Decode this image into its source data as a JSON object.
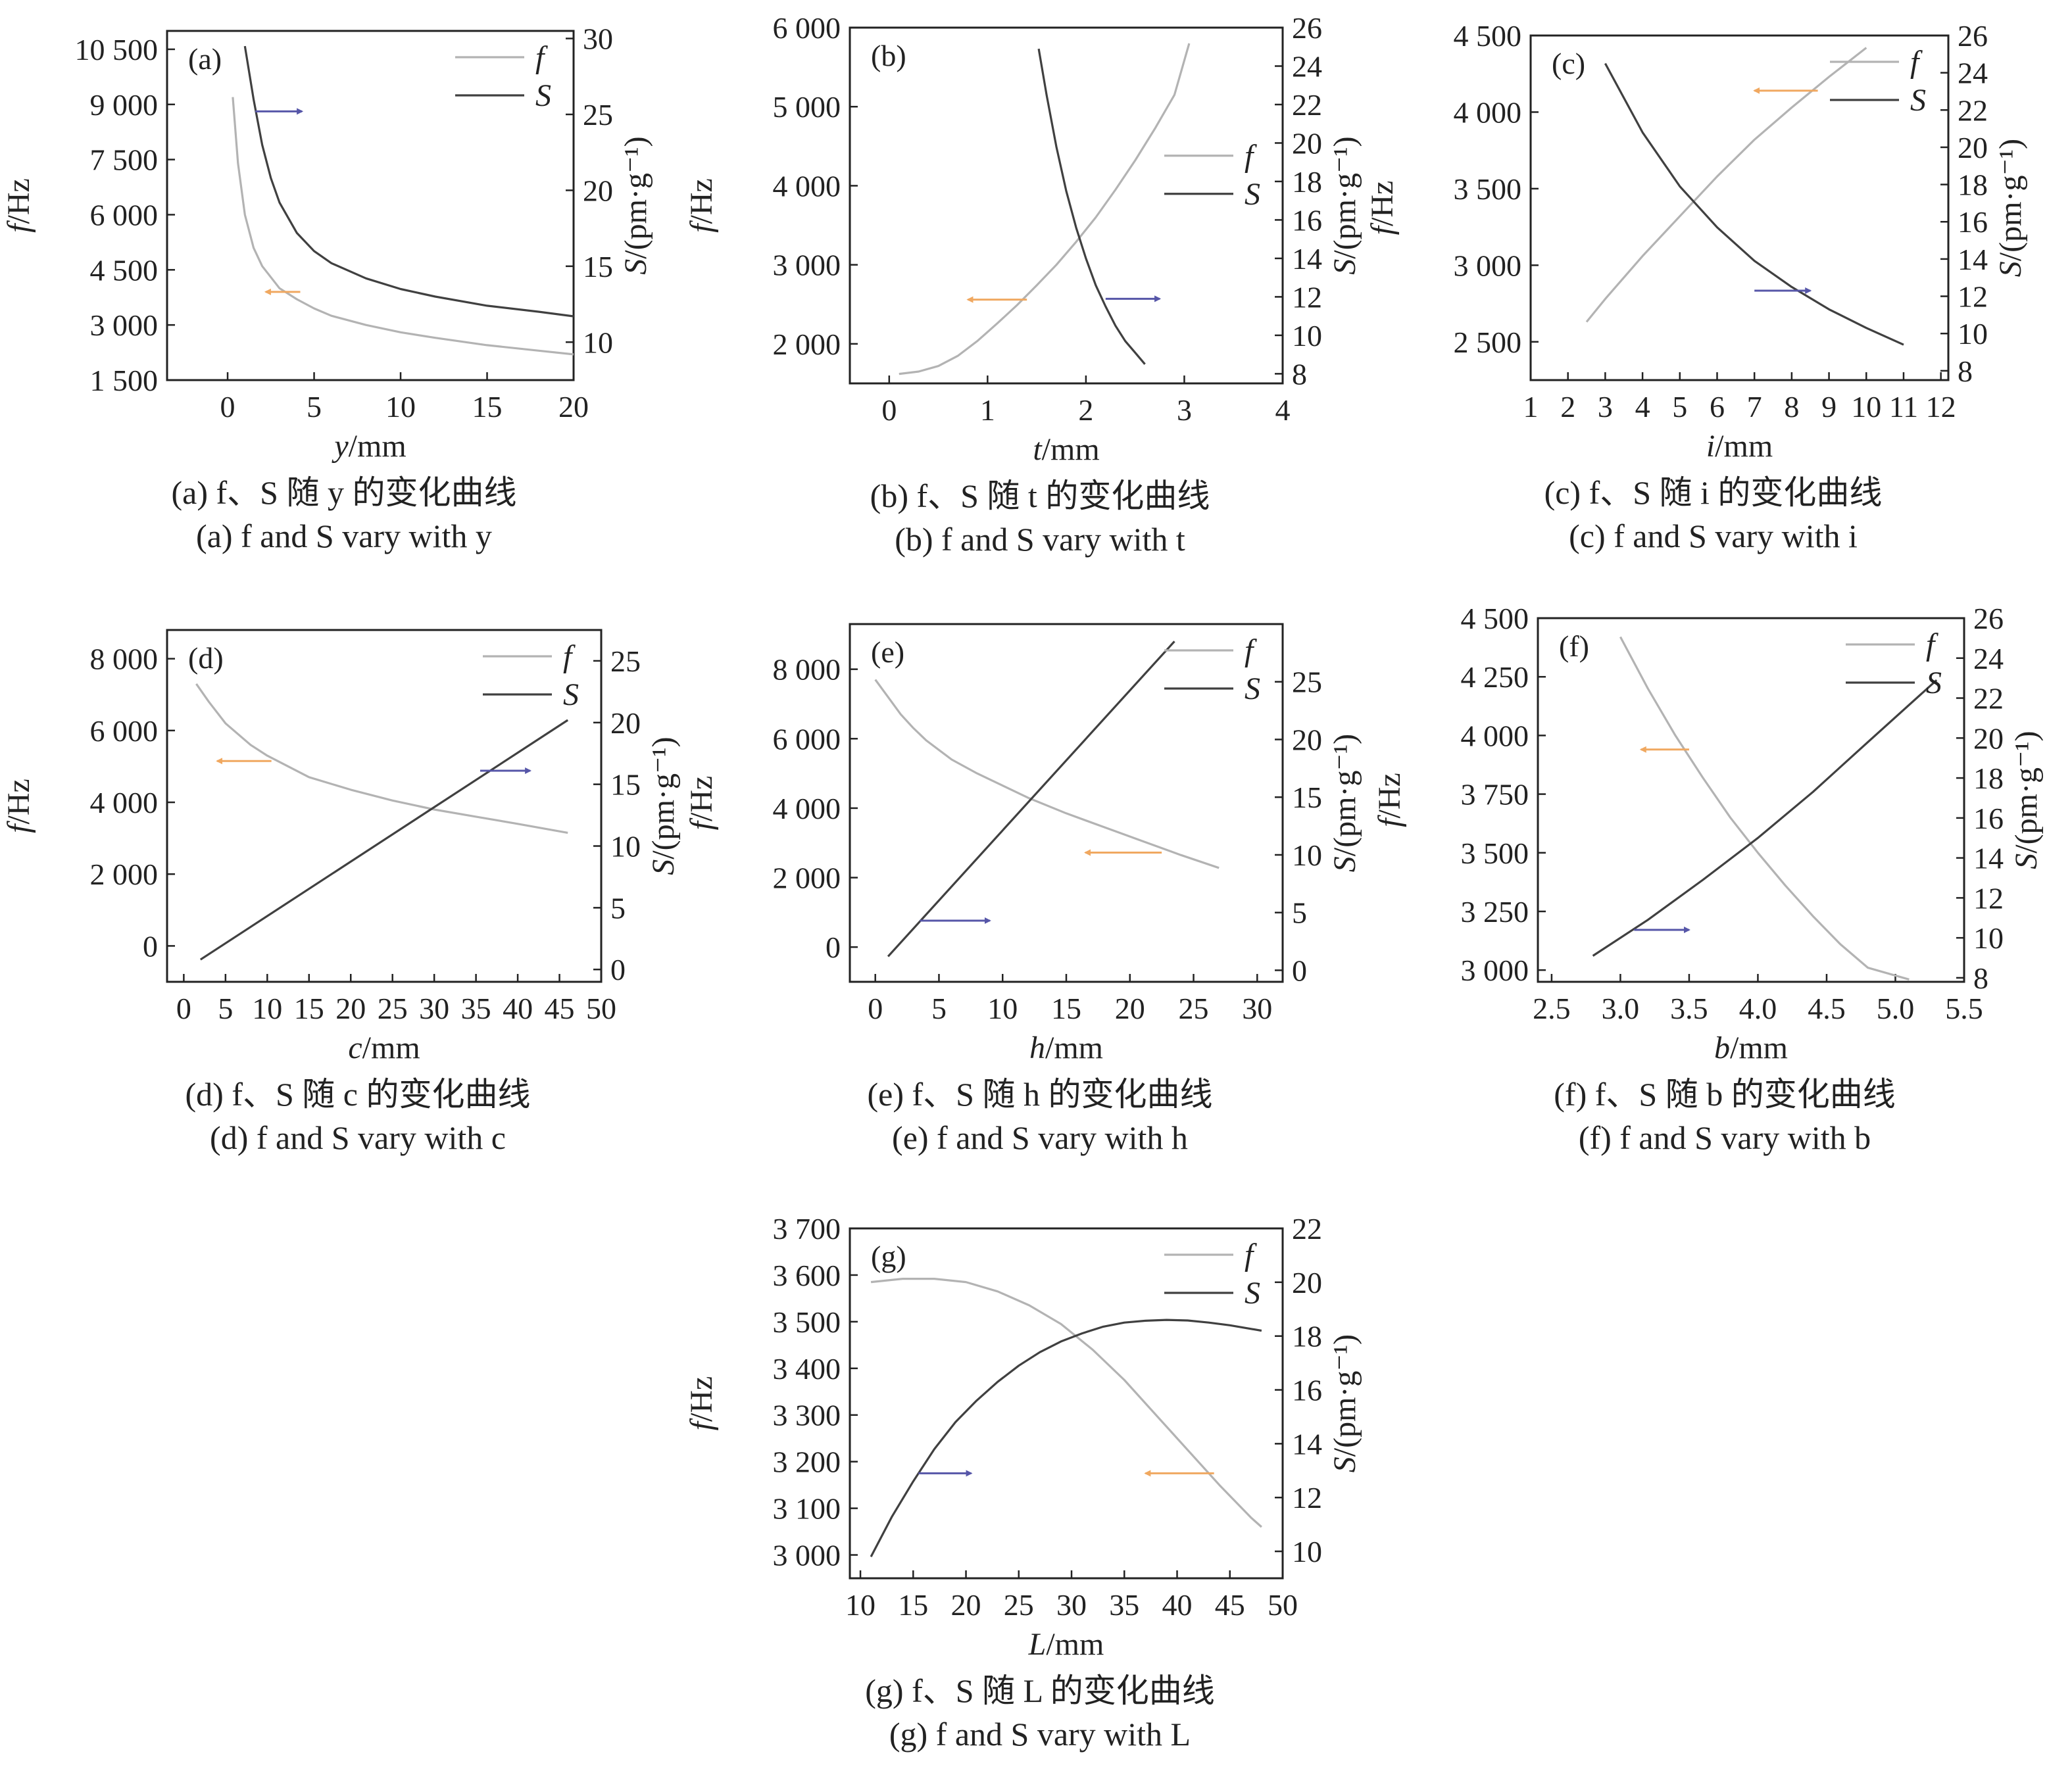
{
  "colors": {
    "f_line": "#b3b3b3",
    "s_line": "#404040",
    "f_arrow": "#f0a860",
    "s_arrow": "#5656a8",
    "axis": "#222222"
  },
  "chart_data": [
    {
      "type": "line",
      "label": "(a)",
      "caption_cn": "(a) f、S 随 y 的变化曲线",
      "caption_en": "(a) f and S vary with y",
      "xlabel": "y/mm",
      "ylabel": "f/Hz",
      "y2label": "S/(pm·g⁻¹)",
      "xlim": [
        -3.5,
        20
      ],
      "ylim": [
        1500,
        11000
      ],
      "y2lim": [
        7.5,
        30.5
      ],
      "xticks": [
        0,
        5,
        10,
        15,
        20
      ],
      "xtick_labels": [
        "0",
        "5",
        "10",
        "15",
        "20"
      ],
      "yticks": [
        1500,
        3000,
        4500,
        6000,
        7500,
        9000,
        10500
      ],
      "ytick_labels": [
        "1 500",
        "3 000",
        "4 500",
        "6 000",
        "7 500",
        "9 000",
        "10 500"
      ],
      "y2ticks": [
        10,
        15,
        20,
        25,
        30
      ],
      "y2tick_labels": [
        "10",
        "15",
        "20",
        "25",
        "30"
      ],
      "legend": [
        "f",
        "S"
      ],
      "legend_loc": "top-right",
      "series": [
        {
          "name": "f",
          "axis": "left",
          "x": [
            0.3,
            0.6,
            1,
            1.5,
            2,
            3,
            4,
            5,
            6,
            8,
            10,
            12,
            15,
            18,
            20
          ],
          "y": [
            9200,
            7400,
            6000,
            5100,
            4600,
            4000,
            3700,
            3450,
            3250,
            3000,
            2800,
            2650,
            2450,
            2300,
            2200
          ]
        },
        {
          "name": "S",
          "axis": "right",
          "x": [
            1,
            1.5,
            2,
            2.5,
            3,
            4,
            5,
            6,
            8,
            10,
            12,
            15,
            18,
            20
          ],
          "y": [
            29.5,
            26,
            23,
            20.8,
            19.2,
            17.2,
            16,
            15.2,
            14.2,
            13.5,
            13,
            12.4,
            12,
            11.7
          ]
        }
      ],
      "arrows": [
        {
          "series": "f",
          "x1": 4.2,
          "x2": 2.2,
          "y": 3900,
          "axis": "left"
        },
        {
          "series": "S",
          "x1": 1.6,
          "x2": 4.3,
          "y": 25.2,
          "axis": "right"
        }
      ]
    },
    {
      "type": "line",
      "label": "(b)",
      "caption_cn": "(b) f、S 随 t 的变化曲线",
      "caption_en": "(b) f and S vary with t",
      "xlabel": "t/mm",
      "ylabel": "f/Hz",
      "y2label": "S/(pm·g⁻¹)",
      "xlim": [
        -0.4,
        4
      ],
      "ylim": [
        1500,
        6000
      ],
      "y2lim": [
        7.5,
        26
      ],
      "xticks": [
        0,
        1,
        2,
        3,
        4
      ],
      "xtick_labels": [
        "0",
        "1",
        "2",
        "3",
        "4"
      ],
      "yticks": [
        2000,
        3000,
        4000,
        5000,
        6000
      ],
      "ytick_labels": [
        "2 000",
        "3 000",
        "4 000",
        "5 000",
        "6 000"
      ],
      "y2ticks": [
        8,
        10,
        12,
        14,
        16,
        18,
        20,
        22,
        24,
        26
      ],
      "y2tick_labels": [
        "8",
        "10",
        "12",
        "14",
        "16",
        "18",
        "20",
        "22",
        "24",
        "26"
      ],
      "legend": [
        "f",
        "S"
      ],
      "legend_loc": "center-right",
      "series": [
        {
          "name": "f",
          "axis": "left",
          "x": [
            0.1,
            0.3,
            0.5,
            0.7,
            0.9,
            1.1,
            1.3,
            1.5,
            1.7,
            1.9,
            2.1,
            2.3,
            2.5,
            2.7,
            2.9,
            3.05
          ],
          "y": [
            1620,
            1650,
            1720,
            1850,
            2040,
            2260,
            2490,
            2740,
            3000,
            3290,
            3600,
            3950,
            4320,
            4720,
            5150,
            5800
          ]
        },
        {
          "name": "S",
          "axis": "right",
          "x": [
            1.52,
            1.6,
            1.7,
            1.8,
            1.9,
            2.0,
            2.1,
            2.2,
            2.3,
            2.4,
            2.5,
            2.6
          ],
          "y": [
            24.9,
            22.5,
            19.8,
            17.5,
            15.6,
            14.0,
            12.6,
            11.5,
            10.5,
            9.7,
            9.1,
            8.5
          ]
        }
      ],
      "arrows": [
        {
          "series": "f",
          "x1": 1.4,
          "x2": 0.8,
          "y": 2560,
          "axis": "left"
        },
        {
          "series": "S",
          "x1": 2.2,
          "x2": 2.75,
          "y": 11.9,
          "axis": "right"
        }
      ]
    },
    {
      "type": "line",
      "label": "(c)",
      "caption_cn": "(c) f、S 随 i 的变化曲线",
      "caption_en": "(c) f and S vary with i",
      "xlabel": "i/mm",
      "ylabel": "f/Hz",
      "y2label": "S/(pm·g⁻¹)",
      "xlim": [
        1,
        12.2
      ],
      "ylim": [
        2250,
        4500
      ],
      "y2lim": [
        7.5,
        26
      ],
      "xticks": [
        1,
        2,
        3,
        4,
        5,
        6,
        7,
        8,
        9,
        10,
        11,
        12
      ],
      "xtick_labels": [
        "1",
        "2",
        "3",
        "4",
        "5",
        "6",
        "7",
        "8",
        "9",
        "10",
        "11",
        "12"
      ],
      "yticks": [
        2500,
        3000,
        3500,
        4000,
        4500
      ],
      "ytick_labels": [
        "2 500",
        "3 000",
        "3 500",
        "4 000",
        "4 500"
      ],
      "y2ticks": [
        8,
        10,
        12,
        14,
        16,
        18,
        20,
        22,
        24,
        26
      ],
      "y2tick_labels": [
        "8",
        "10",
        "12",
        "14",
        "16",
        "18",
        "20",
        "22",
        "24",
        "26"
      ],
      "legend": [
        "f",
        "S"
      ],
      "legend_loc": "top-right",
      "series": [
        {
          "name": "f",
          "axis": "left",
          "x": [
            2.5,
            3,
            4,
            5,
            6,
            7,
            8,
            9,
            10
          ],
          "y": [
            2630,
            2780,
            3060,
            3320,
            3580,
            3820,
            4030,
            4230,
            4420
          ]
        },
        {
          "name": "S",
          "axis": "right",
          "x": [
            3,
            4,
            5,
            6,
            7,
            8,
            9,
            10,
            11
          ],
          "y": [
            24.5,
            20.8,
            17.9,
            15.7,
            13.9,
            12.5,
            11.3,
            10.3,
            9.4
          ]
        }
      ],
      "arrows": [
        {
          "series": "f",
          "x1": 8.7,
          "x2": 7.0,
          "y": 4140,
          "axis": "left"
        },
        {
          "series": "S",
          "x1": 7.0,
          "x2": 8.5,
          "y": 12.3,
          "axis": "right"
        }
      ]
    },
    {
      "type": "line",
      "label": "(d)",
      "caption_cn": "(d) f、S 随 c 的变化曲线",
      "caption_en": "(d) f and S vary with c",
      "xlabel": "c/mm",
      "ylabel": "f/Hz",
      "y2label": "S/(pm·g⁻¹)",
      "xlim": [
        -2,
        50
      ],
      "ylim": [
        -1000,
        8800
      ],
      "y2lim": [
        -1,
        27.5
      ],
      "xticks": [
        0,
        5,
        10,
        15,
        20,
        25,
        30,
        35,
        40,
        45,
        50
      ],
      "xtick_labels": [
        "0",
        "5",
        "10",
        "15",
        "20",
        "25",
        "30",
        "35",
        "40",
        "45",
        "50"
      ],
      "yticks": [
        0,
        2000,
        4000,
        6000,
        8000
      ],
      "ytick_labels": [
        "0",
        "2 000",
        "4 000",
        "6 000",
        "8 000"
      ],
      "y2ticks": [
        0,
        5,
        10,
        15,
        20,
        25
      ],
      "y2tick_labels": [
        "0",
        "5",
        "10",
        "15",
        "20",
        "25"
      ],
      "legend": [
        "f",
        "S"
      ],
      "legend_loc": "top-right",
      "series": [
        {
          "name": "f",
          "axis": "left",
          "x": [
            1.5,
            3,
            5,
            8,
            10,
            15,
            20,
            25,
            30,
            35,
            40,
            46
          ],
          "y": [
            7300,
            6800,
            6200,
            5600,
            5300,
            4700,
            4350,
            4050,
            3800,
            3600,
            3400,
            3150
          ]
        },
        {
          "name": "S",
          "axis": "right",
          "x": [
            2,
            46
          ],
          "y": [
            0.8,
            20.2
          ]
        }
      ],
      "arrows": [
        {
          "series": "f",
          "x1": 10.5,
          "x2": 4.0,
          "y": 5150,
          "axis": "left"
        },
        {
          "series": "S",
          "x1": 35.5,
          "x2": 41.5,
          "y": 16.1,
          "axis": "right"
        }
      ]
    },
    {
      "type": "line",
      "label": "(e)",
      "caption_cn": "(e) f、S 随 h 的变化曲线",
      "caption_en": "(e) f and S vary with h",
      "xlabel": "h/mm",
      "ylabel": "f/Hz",
      "y2label": "S/(pm·g⁻¹)",
      "xlim": [
        -2,
        32
      ],
      "ylim": [
        -1000,
        9300
      ],
      "y2lim": [
        -1,
        30
      ],
      "xticks": [
        0,
        5,
        10,
        15,
        20,
        25,
        30
      ],
      "xtick_labels": [
        "0",
        "5",
        "10",
        "15",
        "20",
        "25",
        "30"
      ],
      "yticks": [
        0,
        2000,
        4000,
        6000,
        8000
      ],
      "ytick_labels": [
        "0",
        "2 000",
        "4 000",
        "6 000",
        "8 000"
      ],
      "y2ticks": [
        0,
        5,
        10,
        15,
        20,
        25
      ],
      "y2tick_labels": [
        "0",
        "5",
        "10",
        "15",
        "20",
        "25"
      ],
      "legend": [
        "f",
        "S"
      ],
      "legend_loc": "top-right",
      "series": [
        {
          "name": "f",
          "axis": "left",
          "x": [
            0,
            1,
            2,
            3,
            4,
            6,
            8,
            10,
            12,
            15,
            18,
            21,
            24,
            27
          ],
          "y": [
            7700,
            7200,
            6700,
            6300,
            5950,
            5400,
            5000,
            4650,
            4300,
            3850,
            3450,
            3050,
            2650,
            2280
          ]
        },
        {
          "name": "S",
          "axis": "right",
          "x": [
            1,
            23.5
          ],
          "y": [
            1.2,
            28.5
          ]
        }
      ],
      "arrows": [
        {
          "series": "f",
          "x1": 22.5,
          "x2": 16.5,
          "y": 2720,
          "axis": "left"
        },
        {
          "series": "S",
          "x1": 3.5,
          "x2": 9.0,
          "y": 4.3,
          "axis": "right"
        }
      ]
    },
    {
      "type": "line",
      "label": "(f)",
      "caption_cn": "(f) f、S 随 b 的变化曲线",
      "caption_en": "(f) f and S vary with b",
      "xlabel": "b/mm",
      "ylabel": "f/Hz",
      "y2label": "S/(pm·g⁻¹)",
      "xlim": [
        2.4,
        5.5
      ],
      "ylim": [
        2950,
        4500
      ],
      "y2lim": [
        7.8,
        26
      ],
      "xticks": [
        2.5,
        3.0,
        3.5,
        4.0,
        4.5,
        5.0,
        5.5
      ],
      "xtick_labels": [
        "2.5",
        "3.0",
        "3.5",
        "4.0",
        "4.5",
        "5.0",
        "5.5"
      ],
      "yticks": [
        3000,
        3250,
        3500,
        3750,
        4000,
        4250,
        4500
      ],
      "ytick_labels": [
        "3 000",
        "3 250",
        "3 500",
        "3 750",
        "4 000",
        "4 250",
        "4 500"
      ],
      "y2ticks": [
        8,
        10,
        12,
        14,
        16,
        18,
        20,
        22,
        24,
        26
      ],
      "y2tick_labels": [
        "8",
        "10",
        "12",
        "14",
        "16",
        "18",
        "20",
        "22",
        "24",
        "26"
      ],
      "legend": [
        "f",
        "S"
      ],
      "legend_loc": "top-right",
      "series": [
        {
          "name": "f",
          "axis": "left",
          "x": [
            3.0,
            3.2,
            3.4,
            3.6,
            3.8,
            4.0,
            4.2,
            4.4,
            4.6,
            4.8,
            5.1
          ],
          "y": [
            4420,
            4200,
            4000,
            3820,
            3650,
            3500,
            3360,
            3230,
            3110,
            3010,
            2960
          ]
        },
        {
          "name": "S",
          "axis": "right",
          "x": [
            2.8,
            3.2,
            3.6,
            4.0,
            4.4,
            4.8,
            5.3
          ],
          "y": [
            9.1,
            10.9,
            12.9,
            15.0,
            17.3,
            19.8,
            22.9
          ]
        }
      ],
      "arrows": [
        {
          "series": "f",
          "x1": 3.5,
          "x2": 3.15,
          "y": 3940,
          "axis": "left"
        },
        {
          "series": "S",
          "x1": 3.1,
          "x2": 3.5,
          "y": 10.4,
          "axis": "right"
        }
      ]
    },
    {
      "type": "line",
      "label": "(g)",
      "caption_cn": "(g) f、S 随 L 的变化曲线",
      "caption_en": "(g) f and S vary with L",
      "xlabel": "L/mm",
      "ylabel": "f/Hz",
      "y2label": "S/(pm·g⁻¹)",
      "xlim": [
        9,
        50
      ],
      "ylim": [
        2950,
        3700
      ],
      "y2lim": [
        9,
        22
      ],
      "xticks": [
        10,
        15,
        20,
        25,
        30,
        35,
        40,
        45,
        50
      ],
      "xtick_labels": [
        "10",
        "15",
        "20",
        "25",
        "30",
        "35",
        "40",
        "45",
        "50"
      ],
      "yticks": [
        3000,
        3100,
        3200,
        3300,
        3400,
        3500,
        3600,
        3700
      ],
      "ytick_labels": [
        "3 000",
        "3 100",
        "3 200",
        "3 300",
        "3 400",
        "3 500",
        "3 600",
        "3 700"
      ],
      "y2ticks": [
        10,
        12,
        14,
        16,
        18,
        20,
        22
      ],
      "y2tick_labels": [
        "10",
        "12",
        "14",
        "16",
        "18",
        "20",
        "22"
      ],
      "legend": [
        "f",
        "S"
      ],
      "legend_loc": "top-right",
      "series": [
        {
          "name": "f",
          "axis": "left",
          "x": [
            11,
            14,
            17,
            20,
            23,
            26,
            29,
            32,
            35,
            38,
            41,
            44,
            47,
            48
          ],
          "y": [
            3585,
            3592,
            3592,
            3585,
            3565,
            3535,
            3495,
            3440,
            3375,
            3300,
            3225,
            3150,
            3080,
            3060
          ]
        },
        {
          "name": "S",
          "axis": "right",
          "x": [
            11,
            13,
            15,
            17,
            19,
            21,
            23,
            25,
            27,
            29,
            31,
            33,
            35,
            37,
            39,
            41,
            43,
            45,
            48
          ],
          "y": [
            9.8,
            11.3,
            12.6,
            13.8,
            14.8,
            15.6,
            16.3,
            16.9,
            17.4,
            17.8,
            18.1,
            18.35,
            18.5,
            18.57,
            18.6,
            18.58,
            18.5,
            18.4,
            18.2
          ]
        }
      ],
      "arrows": [
        {
          "series": "f",
          "x1": 43.5,
          "x2": 37.0,
          "y": 3175,
          "axis": "left"
        },
        {
          "series": "S",
          "x1": 15.5,
          "x2": 20.5,
          "y": 12.9,
          "axis": "right"
        }
      ]
    }
  ]
}
